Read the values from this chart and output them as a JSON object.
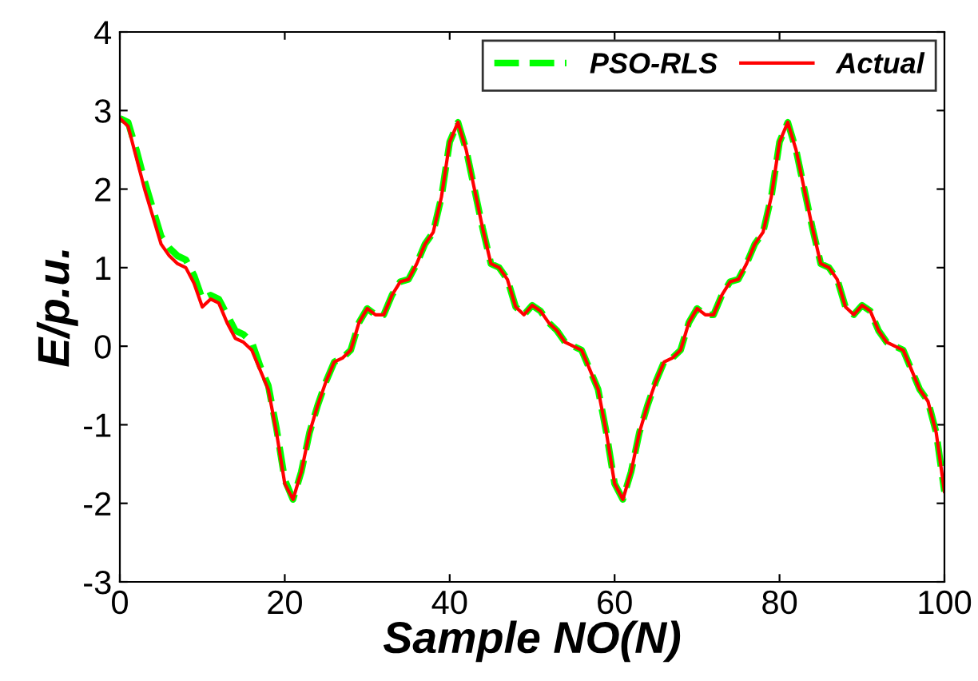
{
  "chart_data": {
    "type": "line",
    "xlabel": "Sample NO(N)",
    "ylabel": "E/p.u.",
    "x": [
      0,
      1,
      2,
      3,
      4,
      5,
      6,
      7,
      8,
      9,
      10,
      11,
      12,
      13,
      14,
      15,
      16,
      17,
      18,
      19,
      20,
      21,
      22,
      23,
      24,
      25,
      26,
      27,
      28,
      29,
      30,
      31,
      32,
      33,
      34,
      35,
      36,
      37,
      38,
      39,
      40,
      41,
      42,
      43,
      44,
      45,
      46,
      47,
      48,
      49,
      50,
      51,
      52,
      53,
      54,
      55,
      56,
      57,
      58,
      59,
      60,
      61,
      62,
      63,
      64,
      65,
      66,
      67,
      68,
      69,
      70,
      71,
      72,
      73,
      74,
      75,
      76,
      77,
      78,
      79,
      80,
      81,
      82,
      83,
      84,
      85,
      86,
      87,
      88,
      89,
      90,
      91,
      92,
      93,
      94,
      95,
      96,
      97,
      98,
      99,
      100
    ],
    "series": [
      {
        "name": "PSO-RLS",
        "color": "#00ff00",
        "line_style": "dashed",
        "values": [
          2.9,
          2.85,
          2.5,
          2.1,
          1.75,
          1.4,
          1.25,
          1.15,
          1.1,
          0.9,
          0.6,
          0.65,
          0.6,
          0.4,
          0.2,
          0.15,
          0.05,
          -0.25,
          -0.5,
          -1.05,
          -1.7,
          -1.95,
          -1.6,
          -1.1,
          -0.75,
          -0.45,
          -0.2,
          -0.15,
          -0.05,
          0.3,
          0.48,
          0.4,
          0.4,
          0.65,
          0.82,
          0.85,
          1.05,
          1.3,
          1.45,
          1.9,
          2.6,
          2.85,
          2.5,
          2.0,
          1.5,
          1.05,
          1.0,
          0.85,
          0.5,
          0.4,
          0.52,
          0.45,
          0.3,
          0.2,
          0.05,
          0.0,
          -0.05,
          -0.3,
          -0.55,
          -1.1,
          -1.75,
          -1.95,
          -1.6,
          -1.1,
          -0.75,
          -0.45,
          -0.2,
          -0.15,
          -0.05,
          0.3,
          0.48,
          0.4,
          0.4,
          0.65,
          0.82,
          0.85,
          1.05,
          1.3,
          1.45,
          1.9,
          2.6,
          2.85,
          2.5,
          2.0,
          1.5,
          1.05,
          1.0,
          0.85,
          0.5,
          0.4,
          0.52,
          0.45,
          0.2,
          0.05,
          0.0,
          -0.05,
          -0.3,
          -0.55,
          -0.7,
          -1.1,
          -1.85
        ]
      },
      {
        "name": "Actual",
        "color": "#ff0000",
        "line_style": "solid",
        "values": [
          2.9,
          2.8,
          2.4,
          2.0,
          1.65,
          1.3,
          1.15,
          1.05,
          1.0,
          0.8,
          0.5,
          0.6,
          0.55,
          0.3,
          0.1,
          0.05,
          -0.05,
          -0.3,
          -0.55,
          -1.1,
          -1.75,
          -1.95,
          -1.6,
          -1.1,
          -0.75,
          -0.45,
          -0.2,
          -0.15,
          -0.05,
          0.3,
          0.48,
          0.4,
          0.4,
          0.65,
          0.82,
          0.85,
          1.05,
          1.3,
          1.45,
          1.9,
          2.6,
          2.85,
          2.5,
          2.0,
          1.5,
          1.05,
          1.0,
          0.85,
          0.5,
          0.4,
          0.52,
          0.45,
          0.3,
          0.2,
          0.05,
          0.0,
          -0.05,
          -0.3,
          -0.55,
          -1.1,
          -1.75,
          -1.95,
          -1.6,
          -1.1,
          -0.75,
          -0.45,
          -0.2,
          -0.15,
          -0.05,
          0.3,
          0.48,
          0.4,
          0.4,
          0.65,
          0.82,
          0.85,
          1.05,
          1.3,
          1.45,
          1.9,
          2.6,
          2.85,
          2.5,
          2.0,
          1.5,
          1.05,
          1.0,
          0.85,
          0.5,
          0.4,
          0.52,
          0.45,
          0.2,
          0.05,
          0.0,
          -0.05,
          -0.3,
          -0.55,
          -0.7,
          -1.1,
          -1.85
        ]
      }
    ],
    "xlim": [
      0,
      100
    ],
    "ylim": [
      -3,
      4
    ],
    "xticks": [
      0,
      20,
      40,
      60,
      80,
      100
    ],
    "yticks": [
      -3,
      -2,
      -1,
      0,
      1,
      2,
      3,
      4
    ],
    "legend": "top right",
    "grid": false
  }
}
